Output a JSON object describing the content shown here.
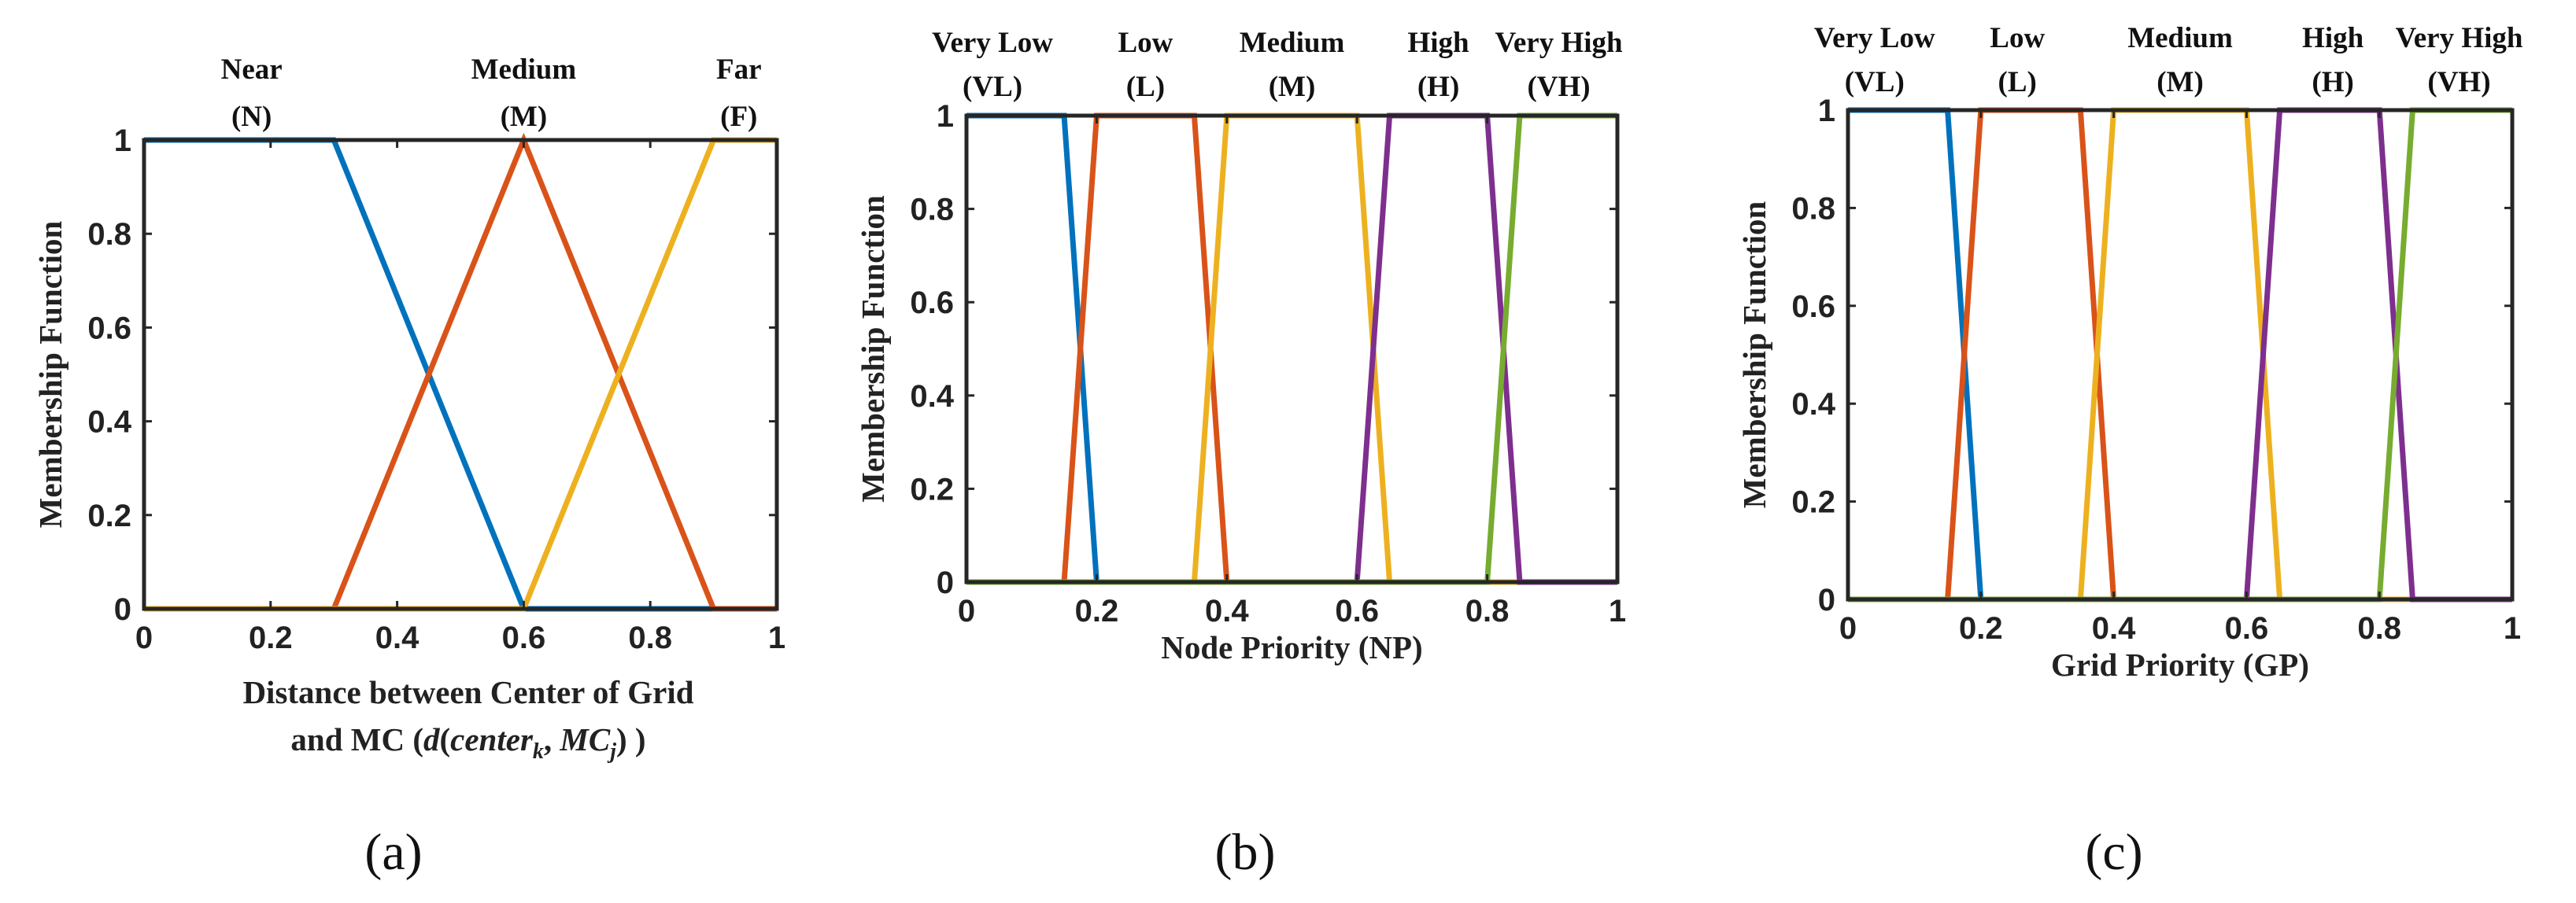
{
  "figure_panels": [
    "(a)",
    "(b)",
    "(c)"
  ],
  "colors": {
    "blue": "#0072BD",
    "orange": "#D95319",
    "yellow": "#EDB120",
    "purple": "#7E2F8E",
    "green": "#77AC30"
  },
  "chart_data": [
    {
      "type": "line",
      "panel": "(a)",
      "title": "",
      "ylabel": "Membership Function",
      "xlabel_line1": "Distance between Center of Grid",
      "xlabel_line2_prefix": "and MC (",
      "xlabel_math": {
        "d": "d",
        "center": "center",
        "sub_k": "k",
        "mc": "MC",
        "sub_j": "j"
      },
      "xlabel_line2_suffix": ")",
      "xlim": [
        0,
        1
      ],
      "ylim": [
        0,
        1
      ],
      "xticks": [
        "0",
        "0.2",
        "0.4",
        "0.6",
        "0.8",
        "1"
      ],
      "xtick_values": [
        0,
        0.2,
        0.4,
        0.6,
        0.8,
        1
      ],
      "yticks": [
        "0",
        "0.2",
        "0.4",
        "0.6",
        "0.8",
        "1"
      ],
      "ytick_values": [
        0,
        0.2,
        0.4,
        0.6,
        0.8,
        1
      ],
      "series": [
        {
          "name": "Near",
          "abbr": "(N)",
          "label_x": 0.17,
          "color": "#0072BD",
          "x": [
            0,
            0.3,
            0.6,
            1
          ],
          "y": [
            1,
            1,
            0,
            0
          ]
        },
        {
          "name": "Medium",
          "abbr": "(M)",
          "label_x": 0.6,
          "color": "#D95319",
          "x": [
            0,
            0.3,
            0.6,
            0.9,
            1
          ],
          "y": [
            0,
            0,
            1,
            0,
            0
          ]
        },
        {
          "name": "Far",
          "abbr": "(F)",
          "label_x": 0.94,
          "color": "#EDB120",
          "x": [
            0,
            0.6,
            0.9,
            1
          ],
          "y": [
            0,
            0,
            1,
            1
          ]
        }
      ]
    },
    {
      "type": "line",
      "panel": "(b)",
      "title": "",
      "ylabel": "Membership Function",
      "xlabel": "Node Priority (NP)",
      "xlim": [
        0,
        1
      ],
      "ylim": [
        0,
        1
      ],
      "xticks": [
        "0",
        "0.2",
        "0.4",
        "0.6",
        "0.8",
        "1"
      ],
      "xtick_values": [
        0,
        0.2,
        0.4,
        0.6,
        0.8,
        1
      ],
      "yticks": [
        "0",
        "0.2",
        "0.4",
        "0.6",
        "0.8",
        "1"
      ],
      "ytick_values": [
        0,
        0.2,
        0.4,
        0.6,
        0.8,
        1
      ],
      "series": [
        {
          "name": "Very Low",
          "abbr": "(VL)",
          "label_x": 0.04,
          "color": "#0072BD",
          "x": [
            0,
            0.15,
            0.2,
            1
          ],
          "y": [
            1,
            1,
            0,
            0
          ]
        },
        {
          "name": "Low",
          "abbr": "(L)",
          "label_x": 0.275,
          "color": "#D95319",
          "x": [
            0,
            0.15,
            0.2,
            0.35,
            0.4,
            1
          ],
          "y": [
            0,
            0,
            1,
            1,
            0,
            0
          ]
        },
        {
          "name": "Medium",
          "abbr": "(M)",
          "label_x": 0.5,
          "color": "#EDB120",
          "x": [
            0,
            0.35,
            0.4,
            0.6,
            0.65,
            1
          ],
          "y": [
            0,
            0,
            1,
            1,
            0,
            0
          ]
        },
        {
          "name": "High",
          "abbr": "(H)",
          "label_x": 0.725,
          "color": "#7E2F8E",
          "x": [
            0,
            0.6,
            0.65,
            0.8,
            0.85,
            1
          ],
          "y": [
            0,
            0,
            1,
            1,
            0,
            0
          ]
        },
        {
          "name": "Very High",
          "abbr": "(VH)",
          "label_x": 0.91,
          "color": "#77AC30",
          "x": [
            0,
            0.8,
            0.85,
            1
          ],
          "y": [
            0,
            0,
            1,
            1
          ]
        }
      ]
    },
    {
      "type": "line",
      "panel": "(c)",
      "title": "",
      "ylabel": "Membership Function",
      "xlabel": "Grid Priority (GP)",
      "xlim": [
        0,
        1
      ],
      "ylim": [
        0,
        1
      ],
      "xticks": [
        "0",
        "0.2",
        "0.4",
        "0.6",
        "0.8",
        "1"
      ],
      "xtick_values": [
        0,
        0.2,
        0.4,
        0.6,
        0.8,
        1
      ],
      "yticks": [
        "0",
        "0.2",
        "0.4",
        "0.6",
        "0.8",
        "1"
      ],
      "ytick_values": [
        0,
        0.2,
        0.4,
        0.6,
        0.8,
        1
      ],
      "series": [
        {
          "name": "Very Low",
          "abbr": "(VL)",
          "label_x": 0.04,
          "color": "#0072BD",
          "x": [
            0,
            0.15,
            0.2,
            1
          ],
          "y": [
            1,
            1,
            0,
            0
          ]
        },
        {
          "name": "Low",
          "abbr": "(L)",
          "label_x": 0.255,
          "color": "#D95319",
          "x": [
            0,
            0.15,
            0.2,
            0.35,
            0.4,
            1
          ],
          "y": [
            0,
            0,
            1,
            1,
            0,
            0
          ]
        },
        {
          "name": "Medium",
          "abbr": "(M)",
          "label_x": 0.5,
          "color": "#EDB120",
          "x": [
            0,
            0.35,
            0.4,
            0.6,
            0.65,
            1
          ],
          "y": [
            0,
            0,
            1,
            1,
            0,
            0
          ]
        },
        {
          "name": "High",
          "abbr": "(H)",
          "label_x": 0.73,
          "color": "#7E2F8E",
          "x": [
            0,
            0.6,
            0.65,
            0.8,
            0.85,
            1
          ],
          "y": [
            0,
            0,
            1,
            1,
            0,
            0
          ]
        },
        {
          "name": "Very High",
          "abbr": "(VH)",
          "label_x": 0.92,
          "color": "#77AC30",
          "x": [
            0,
            0.8,
            0.85,
            1
          ],
          "y": [
            0,
            0,
            1,
            1
          ]
        }
      ]
    }
  ]
}
